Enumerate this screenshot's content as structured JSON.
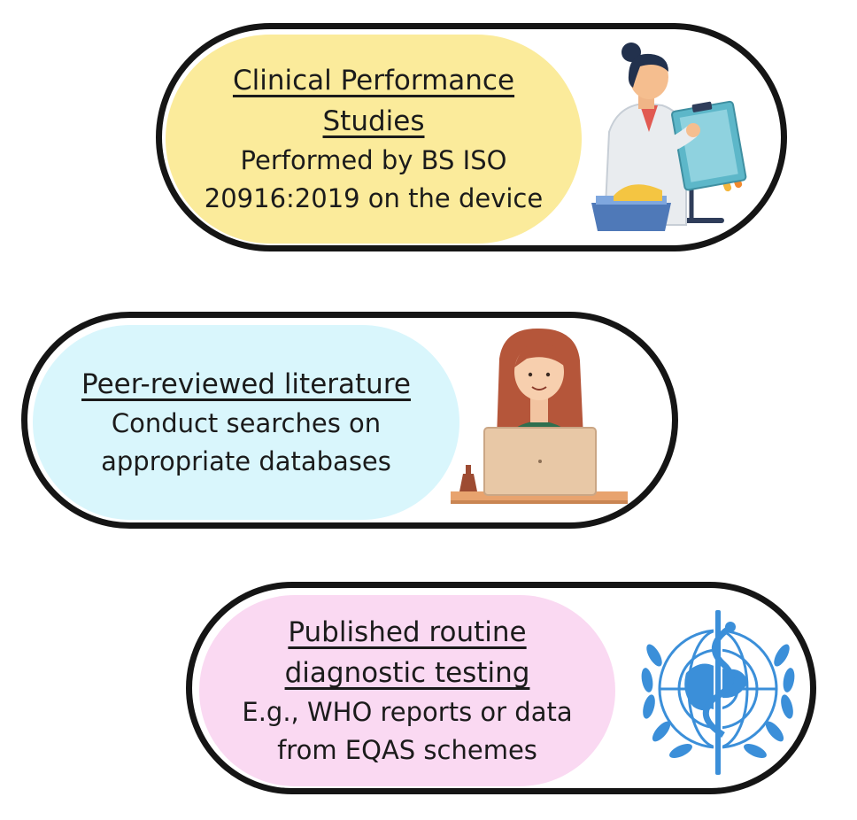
{
  "cards": [
    {
      "title_lines": [
        "Clinical Performance",
        "Studies"
      ],
      "body_lines": [
        "Performed by BS ISO",
        "20916:2019 on the device"
      ],
      "color": "#fbeb9b",
      "icon": "scientist-illustration"
    },
    {
      "title_lines": [
        "Peer-reviewed literature"
      ],
      "body_lines": [
        "Conduct searches on",
        "appropriate databases"
      ],
      "color": "#d9f6fc",
      "icon": "woman-laptop-illustration"
    },
    {
      "title_lines": [
        "Published routine",
        "diagnostic testing"
      ],
      "body_lines": [
        "E.g., WHO reports or data",
        "from EQAS schemes"
      ],
      "color": "#fad9f2",
      "icon": "who-emblem"
    }
  ]
}
